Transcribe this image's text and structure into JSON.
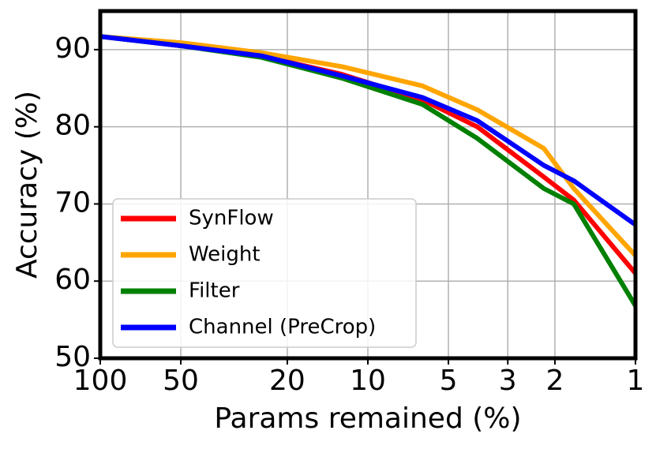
{
  "chart_data": {
    "type": "line",
    "x_label": "Params remained (%)",
    "y_label": "Accuracy (%)",
    "x": [
      100,
      50,
      25,
      12.5,
      6.25,
      3.9,
      2.2,
      1.7,
      1
    ],
    "series": [
      {
        "name": "SynFlow",
        "color": "#ff0000",
        "values": [
          91.7,
          90.5,
          89.2,
          86.8,
          83.5,
          80.0,
          73.5,
          70.5,
          61.0
        ]
      },
      {
        "name": "Weight",
        "color": "#ffa500",
        "values": [
          91.7,
          90.9,
          89.6,
          87.8,
          85.3,
          82.2,
          77.2,
          72.0,
          63.3
        ]
      },
      {
        "name": "Filter",
        "color": "#008000",
        "values": [
          91.7,
          90.5,
          89.0,
          86.3,
          82.9,
          78.5,
          72.0,
          70.0,
          56.8
        ]
      },
      {
        "name": "Channel (PreCrop)",
        "color": "#0000ff",
        "values": [
          91.7,
          90.5,
          89.2,
          86.6,
          83.8,
          80.8,
          75.0,
          73.0,
          67.3
        ]
      }
    ],
    "xscale": "log",
    "xlim": [
      100,
      1
    ],
    "xticks": [
      100,
      50,
      20,
      10,
      5,
      3,
      2,
      1
    ],
    "ylim": [
      50,
      95
    ],
    "yticks": [
      50,
      60,
      70,
      80,
      90
    ],
    "grid": true,
    "legend": "lower left"
  }
}
